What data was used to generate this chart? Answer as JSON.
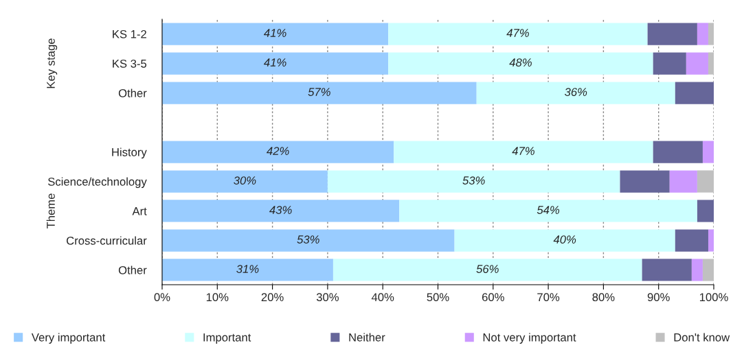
{
  "chart_data": {
    "type": "bar",
    "orientation": "horizontal",
    "stacked": true,
    "categories": [
      "KS 1-2",
      "KS 3-5",
      "Other",
      null,
      "History",
      "Science/technology",
      "Art",
      "Cross-curricular",
      "Other"
    ],
    "series": [
      {
        "name": "Very important",
        "color": "#99ccff",
        "values": [
          41,
          41,
          57,
          null,
          42,
          30,
          43,
          53,
          31
        ],
        "value_labels": [
          "41%",
          "41%",
          "57%",
          null,
          "42%",
          "30%",
          "43%",
          "53%",
          "31%"
        ]
      },
      {
        "name": "Important",
        "color": "#ccffff",
        "values": [
          47,
          48,
          36,
          null,
          47,
          53,
          54,
          40,
          56
        ],
        "value_labels": [
          "47%",
          "48%",
          "36%",
          null,
          "47%",
          "53%",
          "54%",
          "40%",
          "56%"
        ]
      },
      {
        "name": "Neither",
        "color": "#666699",
        "values": [
          9,
          6,
          7,
          null,
          9,
          9,
          3,
          6,
          9
        ]
      },
      {
        "name": "Not very important",
        "color": "#cc99ff",
        "values": [
          2,
          4,
          null,
          null,
          2,
          5,
          null,
          1,
          2
        ]
      },
      {
        "name": "Don't know",
        "color": "#c0c0c0",
        "values": [
          1,
          1,
          null,
          null,
          null,
          3,
          null,
          null,
          2
        ]
      }
    ],
    "xlim": [
      0,
      100
    ],
    "xticks": [
      {
        "value": 0,
        "label": "0%"
      },
      {
        "value": 10,
        "label": "10%"
      },
      {
        "value": 20,
        "label": "20%"
      },
      {
        "value": 30,
        "label": "30%"
      },
      {
        "value": 40,
        "label": "40%"
      },
      {
        "value": 50,
        "label": "50%"
      },
      {
        "value": 60,
        "label": "60%"
      },
      {
        "value": 70,
        "label": "70%"
      },
      {
        "value": 80,
        "label": "80%"
      },
      {
        "value": 90,
        "label": "90%"
      },
      {
        "value": 100,
        "label": "100%"
      }
    ],
    "grid": "x",
    "legend": "bottom",
    "annotations": [
      "Key stage",
      "Theme"
    ]
  }
}
